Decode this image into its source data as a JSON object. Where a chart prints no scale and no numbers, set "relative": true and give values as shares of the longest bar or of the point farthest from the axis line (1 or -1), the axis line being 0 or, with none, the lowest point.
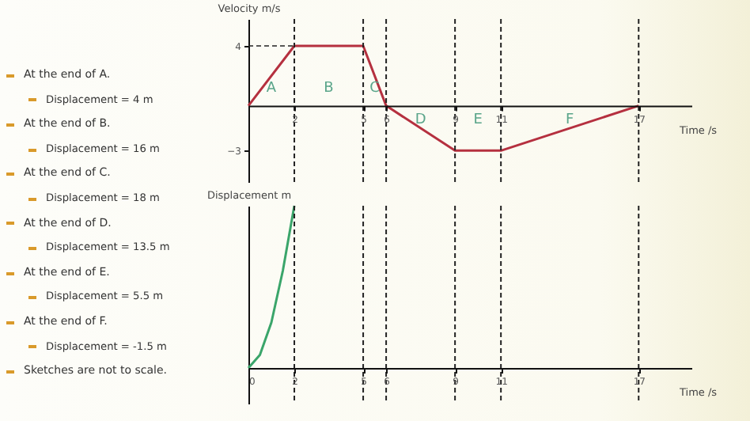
{
  "chart_data": [
    {
      "type": "other",
      "annotations": [
        "At the end of A.",
        "Displacement = 4 m",
        "At the end of B.",
        "Displacement = 16 m",
        "At the end of C.",
        "Displacement = 18 m",
        "At the end of D.",
        "Displacement = 13.5 m",
        "At the end of E.",
        "Displacement = 5.5 m",
        "At the end of F.",
        "Displacement = -1.5 m",
        "Sketches are not to scale."
      ]
    },
    {
      "type": "line",
      "ylabel": "Velocity m/s",
      "xlabel": "Time /s",
      "series": [
        {
          "color": "#b5303f",
          "x": [
            0,
            2,
            5,
            6,
            9,
            11,
            17
          ],
          "values": [
            0,
            4,
            4,
            0,
            -3,
            -3,
            0
          ]
        },
        {
          "color": "#222222",
          "x": [
            0,
            2
          ],
          "values": [
            4,
            4
          ],
          "line_style": "dashed"
        }
      ],
      "xlim": [
        0,
        19.3
      ],
      "xticks": [
        2,
        5,
        6,
        9,
        11,
        17
      ],
      "ylim": [
        -5.1,
        5.8
      ],
      "yticks": [
        -3,
        4
      ],
      "ref_lines": [
        {
          "axis": "x",
          "value": 2,
          "line_style": "dashed"
        },
        {
          "axis": "x",
          "value": 5,
          "line_style": "dashed"
        },
        {
          "axis": "x",
          "value": 6,
          "line_style": "dashed"
        },
        {
          "axis": "x",
          "value": 9,
          "line_style": "dashed"
        },
        {
          "axis": "x",
          "value": 11,
          "line_style": "dashed"
        },
        {
          "axis": "x",
          "value": 17,
          "line_style": "dashed"
        }
      ],
      "annotations": [
        "A",
        "B",
        "C",
        "D",
        "E",
        "F"
      ],
      "grid": false,
      "marker": "none",
      "line_style": "solid"
    },
    {
      "type": "line",
      "ylabel": "Displacement m",
      "xlabel": "Time /s",
      "relative": true,
      "series": [
        {
          "color": "#3aa56a",
          "x": [
            0,
            0.5,
            1,
            1.5,
            2
          ],
          "values": [
            0,
            0.08,
            0.28,
            0.6,
            1
          ]
        }
      ],
      "xlim": [
        0,
        19.3
      ],
      "xticks": [
        0,
        2,
        5,
        6,
        9,
        11,
        17
      ],
      "ref_lines": [
        {
          "axis": "x",
          "value": 2,
          "line_style": "dashed"
        },
        {
          "axis": "x",
          "value": 5,
          "line_style": "dashed"
        },
        {
          "axis": "x",
          "value": 6,
          "line_style": "dashed"
        },
        {
          "axis": "x",
          "value": 9,
          "line_style": "dashed"
        },
        {
          "axis": "x",
          "value": 11,
          "line_style": "dashed"
        },
        {
          "axis": "x",
          "value": 17,
          "line_style": "dashed"
        }
      ],
      "grid": false,
      "marker": "none",
      "line_style": "solid"
    }
  ]
}
